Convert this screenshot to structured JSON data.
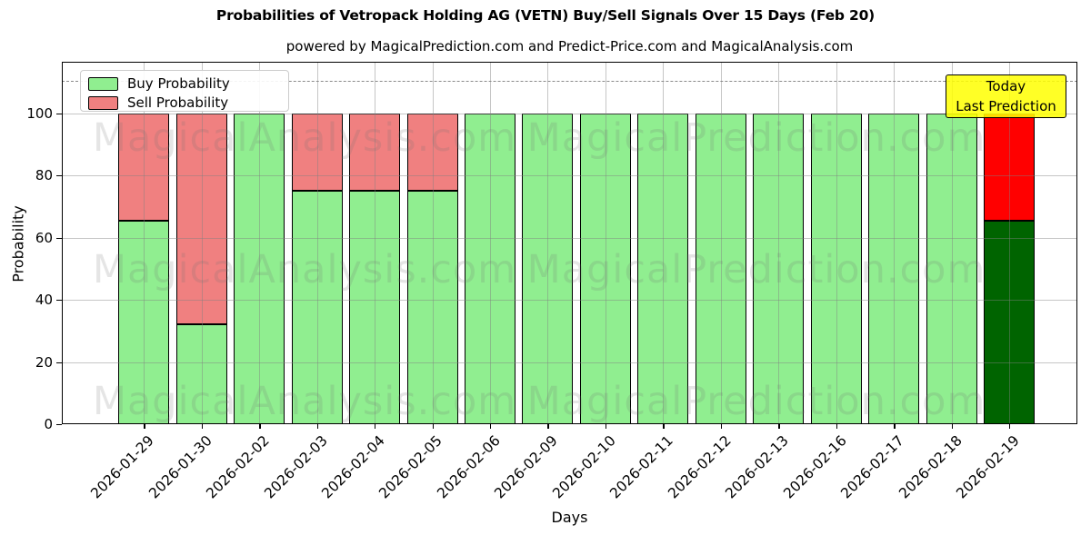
{
  "title": "Probabilities of Vetropack Holding AG (VETN) Buy/Sell Signals Over 15 Days (Feb 20)",
  "subtitle": "powered by MagicalPrediction.com and Predict-Price.com and MagicalAnalysis.com",
  "legend": {
    "buy_label": "Buy Probability",
    "sell_label": "Sell Probability"
  },
  "annotation": {
    "line1": "Today",
    "line2": "Last Prediction"
  },
  "axes": {
    "xlabel": "Days",
    "ylabel": "Probability",
    "yticks": [
      0,
      20,
      40,
      60,
      80,
      100
    ],
    "ylim": [
      0,
      116.5
    ],
    "dashed_line_y": 110,
    "grid": true
  },
  "watermarks": {
    "left": "MagicalAnalysis.com",
    "right": "MagicalPrediction.com"
  },
  "colors": {
    "buy": "#90EE90",
    "sell": "#F08080",
    "today_buy": "#006400",
    "today_sell": "#FF0000",
    "annotation_bg": "#FFFF00",
    "bar_edge": "#000000",
    "grid": "#808080"
  },
  "chart_data": {
    "type": "bar",
    "stacked": true,
    "title": "Probabilities of Vetropack Holding AG (VETN) Buy/Sell Signals Over 15 Days (Feb 20)",
    "xlabel": "Days",
    "ylabel": "Probability",
    "legend_position": "upper left",
    "categories": [
      "2026-01-29",
      "2026-01-30",
      "2026-02-02",
      "2026-02-03",
      "2026-02-04",
      "2026-02-05",
      "2026-02-06",
      "2026-02-09",
      "2026-02-10",
      "2026-02-11",
      "2026-02-12",
      "2026-02-13",
      "2026-02-16",
      "2026-02-17",
      "2026-02-18",
      "2026-02-19"
    ],
    "series": [
      {
        "name": "Buy Probability",
        "values": [
          65.5,
          32,
          100,
          75,
          75,
          75,
          100,
          100,
          100,
          100,
          100,
          100,
          100,
          100,
          100,
          65.5
        ]
      },
      {
        "name": "Sell Probability",
        "values": [
          34.5,
          68,
          0,
          25,
          25,
          25,
          0,
          0,
          0,
          0,
          0,
          0,
          0,
          0,
          0,
          34.5
        ]
      }
    ],
    "today_index": 15
  }
}
